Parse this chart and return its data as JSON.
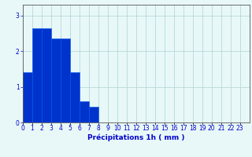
{
  "values": [
    1.4,
    2.65,
    2.65,
    2.35,
    2.35,
    1.4,
    0.6,
    0.45,
    0,
    0,
    0,
    0,
    0,
    0,
    0,
    0,
    0,
    0,
    0,
    0,
    0,
    0,
    0,
    0
  ],
  "bar_color": "#0033cc",
  "bar_edge_color": "#0055ee",
  "background_color": "#e8f8f8",
  "grid_color": "#b8d8d8",
  "axis_color": "#555555",
  "xlabel": "Précipitations 1h ( mm )",
  "xlabel_color": "#0000cc",
  "xlabel_fontsize": 6.5,
  "tick_color": "#0000cc",
  "tick_fontsize": 5.5,
  "ylim": [
    0,
    3.3
  ],
  "yticks": [
    0,
    1,
    2,
    3
  ],
  "num_bars": 24,
  "figsize": [
    3.2,
    2.0
  ],
  "dpi": 100
}
